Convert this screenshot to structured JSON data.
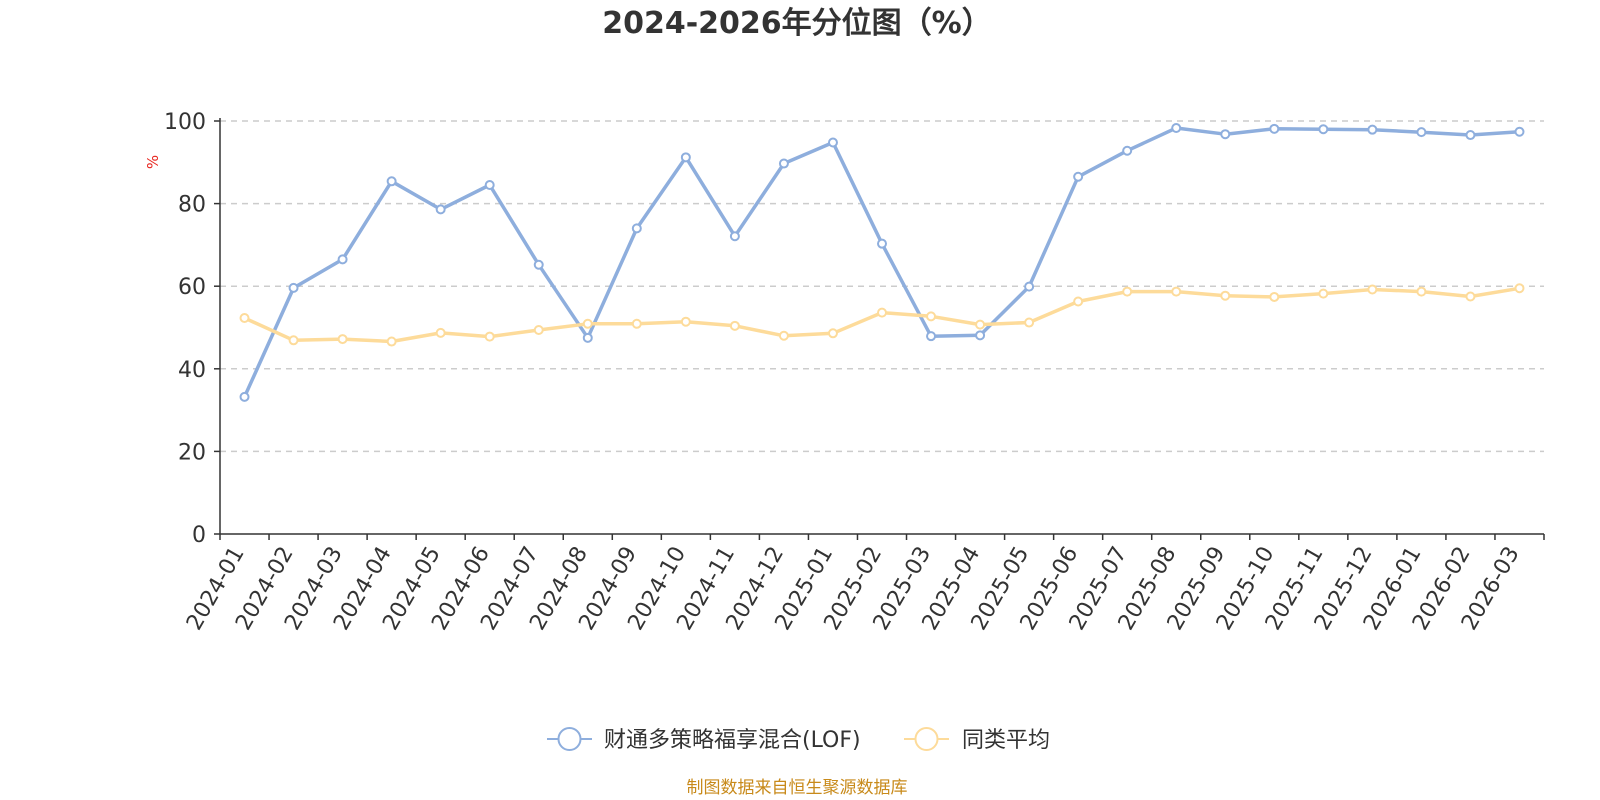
{
  "chart_data": {
    "type": "line",
    "title": "2024-2026年分位图（%）",
    "ylabel": "%",
    "ylim": [
      0,
      100
    ],
    "yticks": [
      0,
      20,
      40,
      60,
      80,
      100
    ],
    "grid": true,
    "legend_position": "bottom",
    "categories": [
      "2024-01",
      "2024-02",
      "2024-03",
      "2024-04",
      "2024-05",
      "2024-06",
      "2024-07",
      "2024-08",
      "2024-09",
      "2024-10",
      "2024-11",
      "2024-12",
      "2025-01",
      "2025-02",
      "2025-03",
      "2025-04",
      "2025-05",
      "2025-06",
      "2025-07",
      "2025-08",
      "2025-09",
      "2025-10",
      "2025-11",
      "2025-12",
      "2026-01",
      "2026-02",
      "2026-03"
    ],
    "series": [
      {
        "name": "财通多策略福享混合(LOF)",
        "color": "#8eaedd",
        "values": [
          33.2,
          59.6,
          66.5,
          85.4,
          78.6,
          84.5,
          65.2,
          47.5,
          74.0,
          91.2,
          72.1,
          89.7,
          94.8,
          70.3,
          47.9,
          48.1,
          59.9,
          86.5,
          92.8,
          98.3,
          96.8,
          98.1,
          98.0,
          97.9,
          97.3,
          96.6,
          97.4
        ]
      },
      {
        "name": "同类平均",
        "color": "#fddb9a",
        "values": [
          52.3,
          46.9,
          47.2,
          46.6,
          48.7,
          47.8,
          49.4,
          50.9,
          50.9,
          51.4,
          50.4,
          48.0,
          48.6,
          53.6,
          52.7,
          50.7,
          51.2,
          56.3,
          58.7,
          58.7,
          57.7,
          57.4,
          58.2,
          59.2,
          58.7,
          57.5,
          59.5
        ]
      }
    ]
  },
  "source_text": "制图数据来自恒生聚源数据库"
}
